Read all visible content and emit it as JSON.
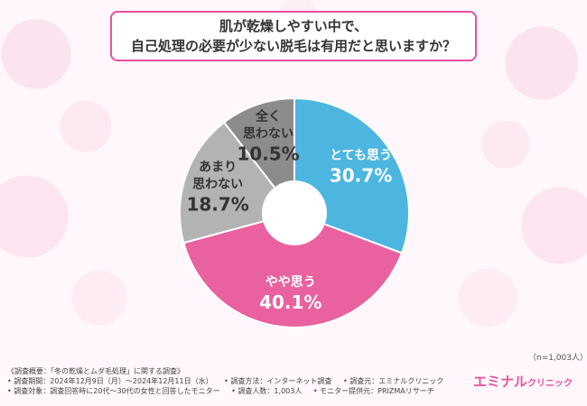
{
  "title": {
    "line1": "肌が乾燥しやすい中で、",
    "line2": "自己処理の必要が少ない脱毛は有用だと思いますか？"
  },
  "chart_data": {
    "type": "pie",
    "categories": [
      "とても思う",
      "やや思う",
      "あまり思わない",
      "全く思わない"
    ],
    "values": [
      30.7,
      40.1,
      18.7,
      10.5
    ],
    "value_labels": [
      "30.7%",
      "40.1%",
      "18.7%",
      "10.5%"
    ],
    "colors": [
      "#4cb6e0",
      "#e9619f",
      "#b3b3b3",
      "#8c8c8c"
    ],
    "label_colors": [
      "#ffffff",
      "#ffffff",
      "#333333",
      "#333333"
    ],
    "label_lines": [
      [
        "とても思う"
      ],
      [
        "やや思う"
      ],
      [
        "あまり",
        "思わない"
      ],
      [
        "全く",
        "思わない"
      ]
    ],
    "donut": true
  },
  "sample_size": "（n=1,003人）",
  "footer": {
    "row1": [
      "《調査概要：「冬の乾燥とムダ毛処理」に関する調査》"
    ],
    "row2": [
      "• 調査期間：2024年12月9日（月）〜2024年12月11日（水）",
      "• 調査方法：インターネット調査",
      "• 調査元：エミナルクリニック"
    ],
    "row3": [
      "• 調査対象：調査回答時に20代〜30代の女性と回答したモニター",
      "• 調査人数：1,003人",
      "• モニター提供元：PRIZMAリサーチ"
    ]
  },
  "logo": {
    "main": "エミナル",
    "sub": "クリニック"
  }
}
